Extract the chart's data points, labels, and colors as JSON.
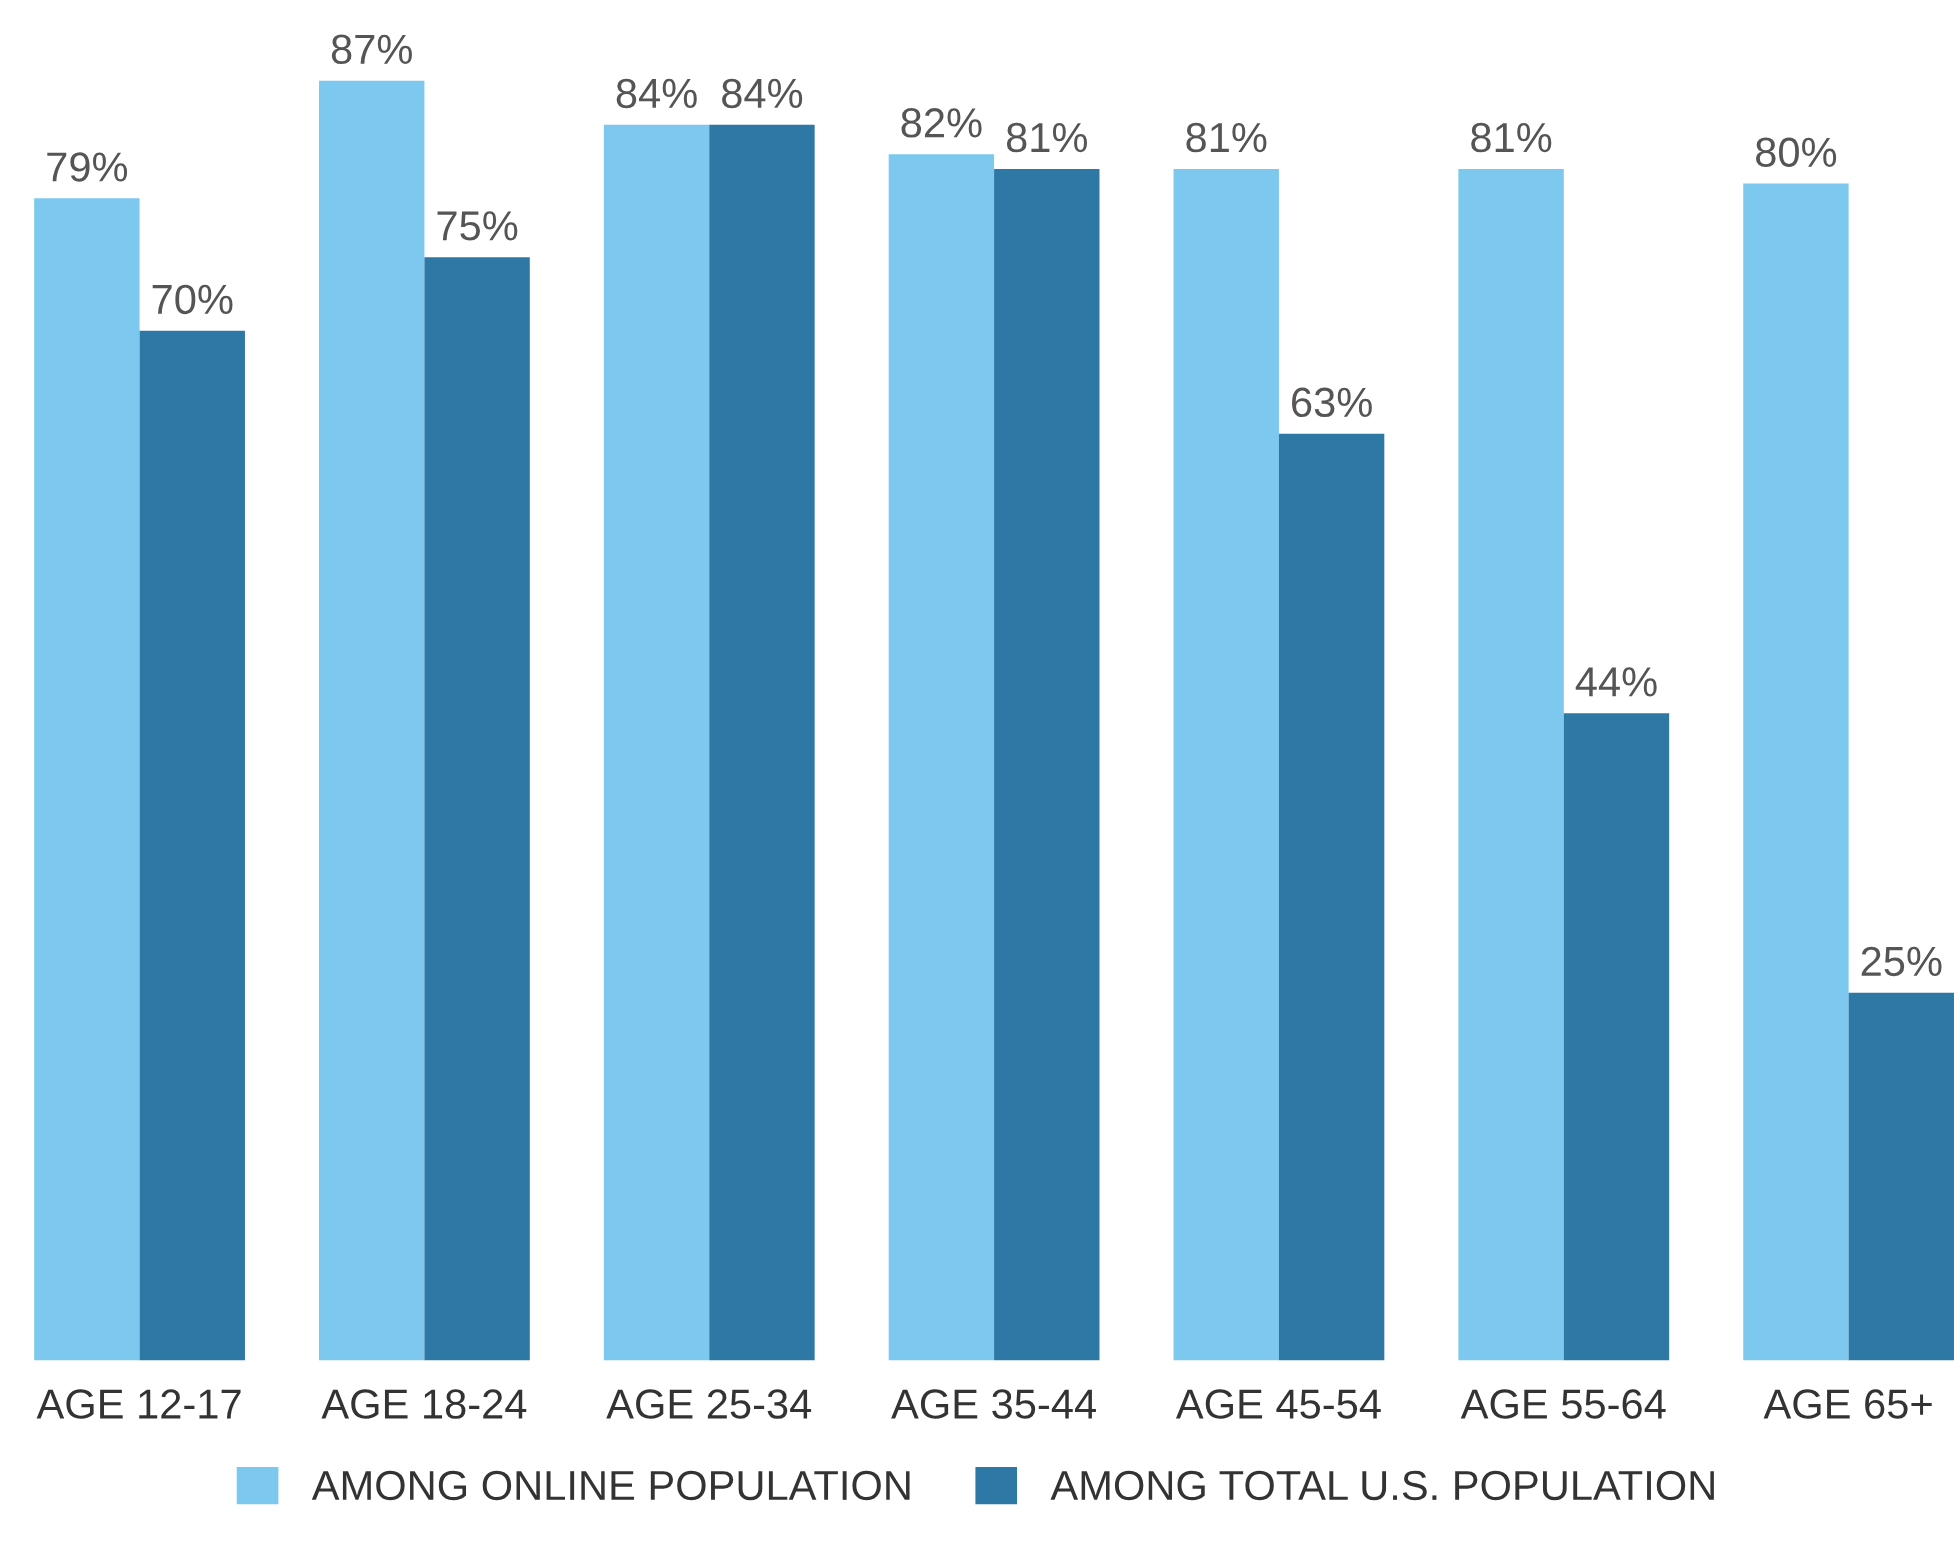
{
  "chart_data": {
    "type": "bar",
    "categories": [
      "AGE 12-17",
      "AGE 18-24",
      "AGE 25-34",
      "AGE 35-44",
      "AGE 45-54",
      "AGE 55-64",
      "AGE 65+"
    ],
    "series": [
      {
        "name": "AMONG ONLINE POPULATION",
        "color": "#7dc8ee",
        "values": [
          79,
          87,
          84,
          82,
          81,
          81,
          80
        ],
        "value_labels": [
          "79%",
          "87%",
          "84%",
          "82%",
          "81%",
          "81%",
          "80%"
        ]
      },
      {
        "name": "AMONG TOTAL U.S. POPULATION",
        "color": "#2e78a6",
        "values": [
          70,
          75,
          84,
          81,
          63,
          44,
          25
        ],
        "value_labels": [
          "70%",
          "75%",
          "84%",
          "81%",
          "63%",
          "44%",
          "25%"
        ]
      }
    ],
    "grid": false,
    "legend": "bottom",
    "tick_labels": "x"
  }
}
